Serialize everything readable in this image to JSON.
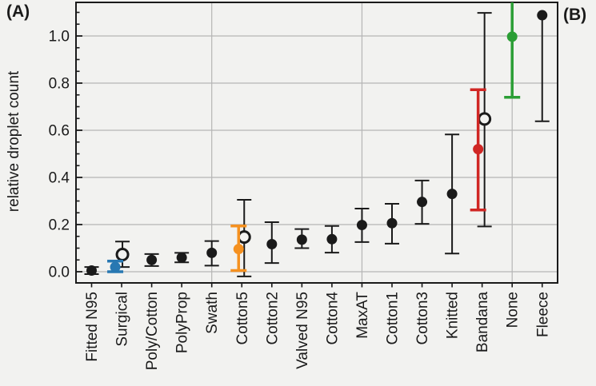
{
  "panels": {
    "a": "(A)",
    "b": "(B)"
  },
  "chart_data": {
    "type": "scatter",
    "title": "",
    "xlabel": "",
    "ylabel": "relative droplet count",
    "ylim": [
      -0.047,
      1.142
    ],
    "y_ticks": [
      0.0,
      0.2,
      0.4,
      0.6,
      0.8,
      1.0
    ],
    "y_tick_labels": [
      "0.0",
      "0.2",
      "0.4",
      "0.6",
      "0.8",
      "1.0"
    ],
    "y_minor_tick_step": 0.05,
    "grid": "horizontal-major and vertical at every 5th category",
    "vertical_gridline_categories": [
      "Swath",
      "MaxAT",
      "None"
    ],
    "legend_position": "none",
    "categories": [
      "Fitted N95",
      "Surgical",
      "Poly/Cotton",
      "PolyProp",
      "Swath",
      "Cotton5",
      "Cotton2",
      "Valved N95",
      "Cotton4",
      "MaxAT",
      "Cotton1",
      "Cotton3",
      "Knitted",
      "Bandana",
      "None",
      "Fleece"
    ],
    "masks": [
      {
        "label": "Fitted N95",
        "value": 0.005,
        "err_lo": -0.01,
        "err_hi": 0.02,
        "color": "black",
        "dx": 0
      },
      {
        "label": "Surgical",
        "value": 0.02,
        "err_lo": 0.0,
        "err_hi": 0.045,
        "color": "blue",
        "dx": -8,
        "open": {
          "value": 0.073,
          "err_lo": 0.02,
          "err_hi": 0.128,
          "dx": 1
        }
      },
      {
        "label": "Poly/Cotton",
        "value": 0.05,
        "err_lo": 0.024,
        "err_hi": 0.075,
        "color": "black",
        "dx": 0
      },
      {
        "label": "PolyProp",
        "value": 0.06,
        "err_lo": 0.04,
        "err_hi": 0.08,
        "color": "black",
        "dx": 0
      },
      {
        "label": "Swath",
        "value": 0.08,
        "err_lo": 0.026,
        "err_hi": 0.13,
        "color": "black",
        "dx": 0
      },
      {
        "label": "Cotton5",
        "value": 0.096,
        "err_lo": 0.005,
        "err_hi": 0.194,
        "color": "orange",
        "dx": -4,
        "open": {
          "value": 0.147,
          "err_lo": -0.02,
          "err_hi": 0.305,
          "dx": 3
        }
      },
      {
        "label": "Cotton2",
        "value": 0.117,
        "err_lo": 0.037,
        "err_hi": 0.21,
        "color": "black",
        "dx": 0
      },
      {
        "label": "Valved N95",
        "value": 0.136,
        "err_lo": 0.1,
        "err_hi": 0.181,
        "color": "black",
        "dx": 0
      },
      {
        "label": "Cotton4",
        "value": 0.138,
        "err_lo": 0.081,
        "err_hi": 0.194,
        "color": "black",
        "dx": 0
      },
      {
        "label": "MaxAT",
        "value": 0.198,
        "err_lo": 0.126,
        "err_hi": 0.268,
        "color": "black",
        "dx": 0
      },
      {
        "label": "Cotton1",
        "value": 0.206,
        "err_lo": 0.119,
        "err_hi": 0.288,
        "color": "black",
        "dx": 0
      },
      {
        "label": "Cotton3",
        "value": 0.296,
        "err_lo": 0.203,
        "err_hi": 0.387,
        "color": "black",
        "dx": 0
      },
      {
        "label": "Knitted",
        "value": 0.33,
        "err_lo": 0.077,
        "err_hi": 0.582,
        "color": "black",
        "dx": 0
      },
      {
        "label": "Bandana",
        "value": 0.52,
        "err_lo": 0.262,
        "err_hi": 0.772,
        "color": "red",
        "dx": -5,
        "open": {
          "value": 0.648,
          "err_lo": 0.192,
          "err_hi": 1.098,
          "dx": 3
        }
      },
      {
        "label": "None",
        "value": 0.997,
        "err_lo": 0.74,
        "err_hi": 1.16,
        "color": "green",
        "dx": 0,
        "top_clipped": true
      },
      {
        "label": "Fleece",
        "value": 1.088,
        "err_lo": 0.638,
        "err_hi": 1.088,
        "color": "black",
        "dx": 0,
        "no_top_cap": true
      }
    ],
    "colors": {
      "black": "#1a1a1a",
      "blue": "#2878b2",
      "orange": "#f59120",
      "red": "#d02724",
      "green": "#2b9e35",
      "grid": "#b5b5b5",
      "frame": "#1a1a1a",
      "background": "#f2f2f0"
    }
  }
}
